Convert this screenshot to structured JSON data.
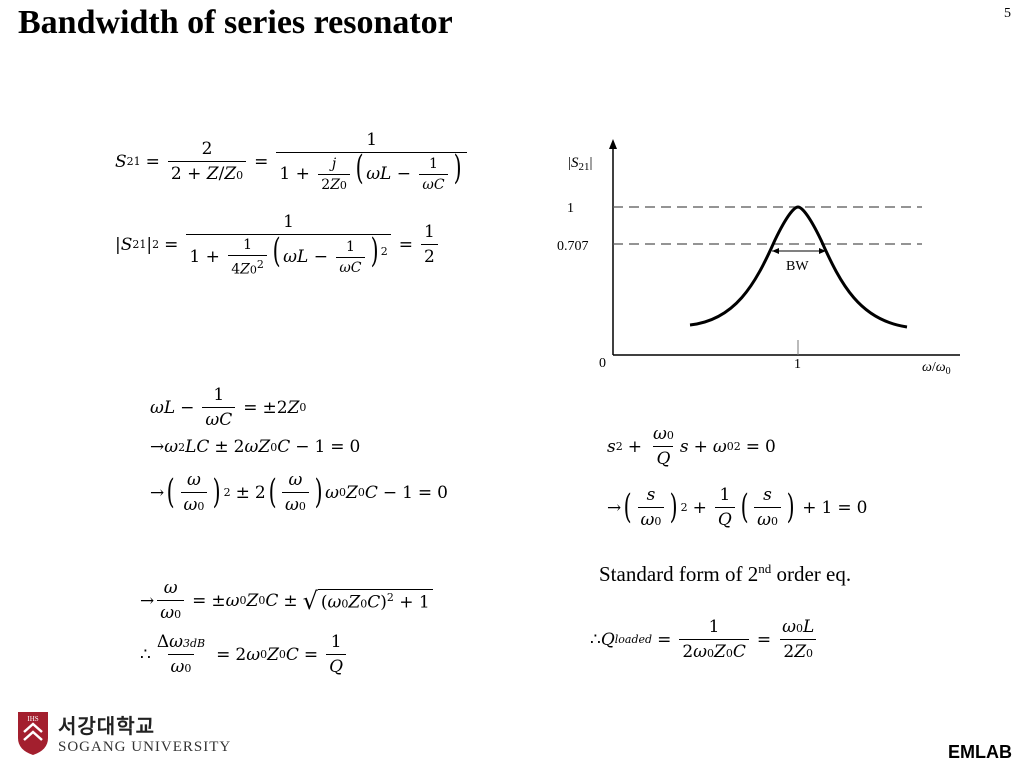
{
  "slide": {
    "title": "Bandwidth of series resonator",
    "page_number": "5",
    "footer_label": "EMLAB",
    "logo": {
      "korean_name": "서강대학교",
      "english_name": "SOGANG UNIVERSITY",
      "emblem_text": "IHS"
    }
  },
  "graph": {
    "y_axis_label": "|S21|",
    "x_axis_label": "ω/ω0",
    "tick_y_1": "1",
    "tick_y_0707": "0.707",
    "tick_origin": "0",
    "tick_x_1": "1",
    "bandwidth_label": "BW"
  },
  "caption": "Standard form of 2nd order eq."
}
